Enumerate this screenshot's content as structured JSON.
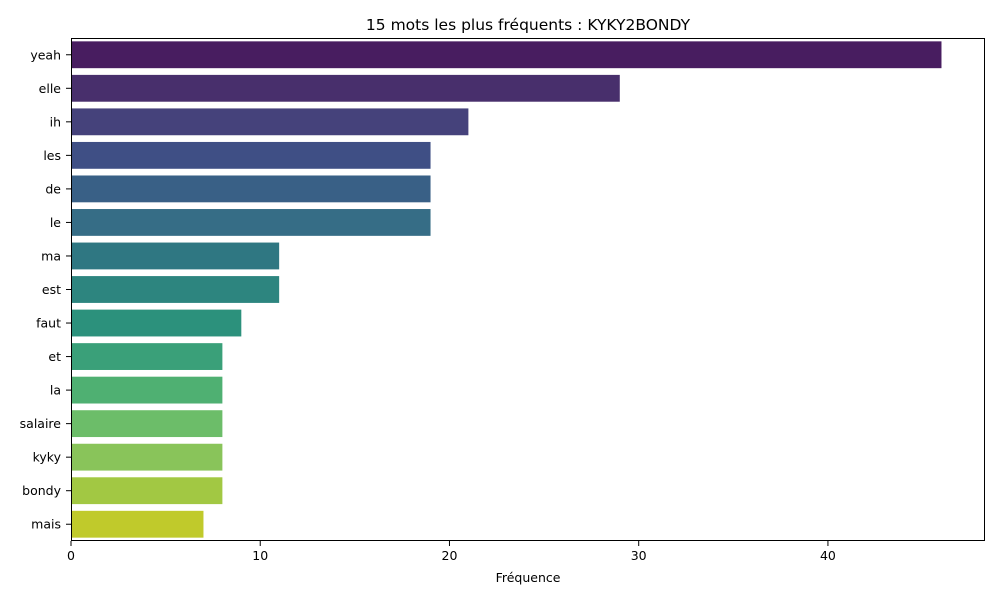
{
  "chart_data": {
    "type": "bar",
    "orientation": "horizontal",
    "title": "15 mots les plus fréquents : KYKY2BONDY",
    "xlabel": "Fréquence",
    "ylabel": "",
    "xlim": [
      0,
      48.3
    ],
    "xticks": [
      0,
      10,
      20,
      30,
      40
    ],
    "grid": false,
    "legend": "none",
    "categories": [
      "yeah",
      "elle",
      "ih",
      "les",
      "de",
      "le",
      "ma",
      "est",
      "faut",
      "et",
      "la",
      "salaire",
      "kyky",
      "bondy",
      "mais"
    ],
    "values": [
      46,
      29,
      21,
      19,
      19,
      19,
      11,
      11,
      9,
      8,
      8,
      8,
      8,
      8,
      7
    ],
    "colors": [
      "#481d60",
      "#482f6c",
      "#45427b",
      "#3f4f85",
      "#396086",
      "#366d86",
      "#2f7782",
      "#2d857f",
      "#2c917c",
      "#3aa079",
      "#4fb072",
      "#6cbd69",
      "#89c45a",
      "#a2c843",
      "#c0ca2b"
    ]
  }
}
